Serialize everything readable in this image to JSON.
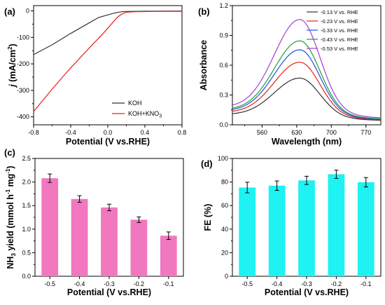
{
  "panels": {
    "a": "(a)",
    "b": "(b)",
    "c": "(c)",
    "d": "(d)"
  },
  "chart_data": [
    {
      "id": "a",
      "type": "line",
      "xlabel": "Potential (V vs.RHE)",
      "ylabel": "j (mA/cm2)",
      "ylabel_parts": {
        "j": "j",
        "rest": " (mA/cm",
        "sup": "2",
        "close": ")"
      },
      "xlim": [
        -0.8,
        0.8
      ],
      "ylim": [
        -430,
        20
      ],
      "xticks": [
        "-0.8",
        "-0.4",
        "0.0",
        "0.4",
        "0.8"
      ],
      "xtick_values": [
        -0.8,
        -0.4,
        0.0,
        0.4,
        0.8
      ],
      "yticks": [
        "0",
        "-100",
        "-200",
        "-300",
        "-400"
      ],
      "ytick_values": [
        0,
        -100,
        -200,
        -300,
        -400
      ],
      "legend_position": "bottom-right",
      "series": [
        {
          "name": "KOH",
          "color": "#333333",
          "points": [
            [
              -0.8,
              -165
            ],
            [
              -0.6,
              -128
            ],
            [
              -0.4,
              -85
            ],
            [
              -0.2,
              -45
            ],
            [
              -0.1,
              -25
            ],
            [
              0.0,
              -15
            ],
            [
              0.05,
              -10
            ],
            [
              0.1,
              -6
            ],
            [
              0.15,
              -3
            ],
            [
              0.2,
              -2
            ],
            [
              0.4,
              -1
            ],
            [
              0.8,
              -0.5
            ]
          ]
        },
        {
          "name": "KOH+KNO3",
          "name_parts": {
            "main": "KOH+KNO",
            "sub": "3"
          },
          "color": "#e8201b",
          "points": [
            [
              -0.8,
              -380
            ],
            [
              -0.6,
              -295
            ],
            [
              -0.4,
              -215
            ],
            [
              -0.2,
              -140
            ],
            [
              -0.05,
              -85
            ],
            [
              0.05,
              -45
            ],
            [
              0.1,
              -25
            ],
            [
              0.15,
              -12
            ],
            [
              0.2,
              -5
            ],
            [
              0.3,
              -3
            ],
            [
              0.5,
              -2
            ],
            [
              0.8,
              -1.5
            ]
          ]
        }
      ]
    },
    {
      "id": "b",
      "type": "line",
      "xlabel": "Wavelength (nm)",
      "ylabel": "Absorbance",
      "xlim": [
        500,
        800
      ],
      "ylim": [
        0,
        1.2
      ],
      "xticks": [
        "560",
        "630",
        "700",
        "770"
      ],
      "xtick_values": [
        560,
        630,
        700,
        770
      ],
      "yticks": [
        "0.0",
        "0.3",
        "0.6",
        "0.9",
        "1.2"
      ],
      "ytick_values": [
        0,
        0.3,
        0.6,
        0.9,
        1.2
      ],
      "legend_position": "top-right",
      "peak_wavelength": 637,
      "series": [
        {
          "name": "-0.13 V vs. RHE",
          "color": "#333333",
          "peak": 0.47,
          "base_left": 0.1,
          "base_right": 0.045
        },
        {
          "name": "-0.23 V vs. RHE",
          "color": "#e8201b",
          "peak": 0.63,
          "base_left": 0.12,
          "base_right": 0.05
        },
        {
          "name": "-0.33 V vs. RHE",
          "color": "#1f4fe0",
          "peak": 0.755,
          "base_left": 0.135,
          "base_right": 0.055
        },
        {
          "name": "-0.43 V vs. RHE",
          "color": "#1e9e3a",
          "peak": 0.845,
          "base_left": 0.145,
          "base_right": 0.06
        },
        {
          "name": "-0.53 V vs. RHE",
          "color": "#a53fd6",
          "peak": 1.06,
          "base_left": 0.17,
          "base_right": 0.07
        }
      ]
    },
    {
      "id": "c",
      "type": "bar",
      "xlabel": "Potential (V vs.RHE)",
      "ylabel": "NH3 yield (mmol h-1 mg-1)",
      "ylabel_parts": {
        "a": "NH",
        "a_sub": "3",
        "b": " yield (mmol h",
        "b_sup": "-1",
        "c": " mg",
        "c_sup": "-1",
        "d": ")"
      },
      "categories": [
        "-0.5",
        "-0.4",
        "-0.3",
        "-0.2",
        "-0.1"
      ],
      "values": [
        2.08,
        1.64,
        1.46,
        1.2,
        0.86
      ],
      "errors": [
        0.09,
        0.07,
        0.07,
        0.06,
        0.08
      ],
      "ylim": [
        0,
        2.5
      ],
      "yticks": [
        "0.0",
        "0.5",
        "1.0",
        "1.5",
        "2.0",
        "2.5"
      ],
      "ytick_values": [
        0,
        0.5,
        1.0,
        1.5,
        2.0,
        2.5
      ],
      "color": "#f178bf"
    },
    {
      "id": "d",
      "type": "bar",
      "xlabel": "Potential (V vs.RHE)",
      "ylabel": "FE (%)",
      "categories": [
        "-0.5",
        "-0.4",
        "-0.3",
        "-0.2",
        "-0.1"
      ],
      "values": [
        75.3,
        76.9,
        81.4,
        86.6,
        79.8
      ],
      "errors": [
        4.5,
        4.0,
        3.5,
        3.5,
        4.0
      ],
      "ylim": [
        0,
        100
      ],
      "yticks": [
        "0",
        "20",
        "40",
        "60",
        "80",
        "100"
      ],
      "ytick_values": [
        0,
        20,
        40,
        60,
        80,
        100
      ],
      "color": "#1ef2f2"
    }
  ]
}
